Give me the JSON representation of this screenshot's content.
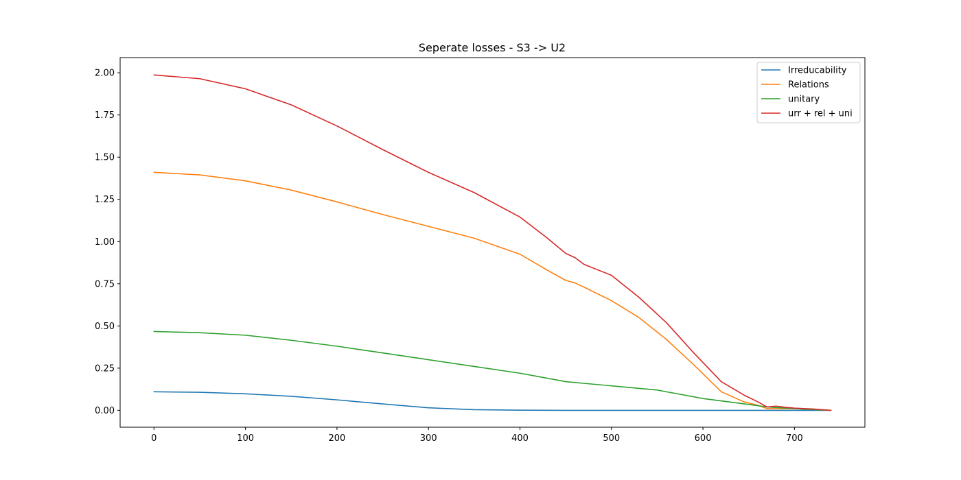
{
  "chart_data": {
    "type": "line",
    "title": "Seperate losses - S3 -> U2",
    "xlabel": "",
    "ylabel": "",
    "xlim": [
      -37,
      777
    ],
    "ylim": [
      -0.1,
      2.09
    ],
    "x_ticks": [
      0,
      100,
      200,
      300,
      400,
      500,
      600,
      700
    ],
    "y_ticks": [
      0.0,
      0.25,
      0.5,
      0.75,
      1.0,
      1.25,
      1.5,
      1.75,
      2.0
    ],
    "x_tick_labels": [
      "0",
      "100",
      "200",
      "300",
      "400",
      "500",
      "600",
      "700"
    ],
    "y_tick_labels": [
      "0.00",
      "0.25",
      "0.50",
      "0.75",
      "1.00",
      "1.25",
      "1.50",
      "1.75",
      "2.00"
    ],
    "grid": false,
    "legend_position": "top-right",
    "series": [
      {
        "name": "Irreducability",
        "color": "#1f77b4",
        "x": [
          0,
          50,
          100,
          150,
          200,
          250,
          300,
          350,
          400,
          450,
          500,
          550,
          600,
          650,
          700,
          740
        ],
        "y": [
          0.11,
          0.107,
          0.098,
          0.083,
          0.062,
          0.038,
          0.015,
          0.004,
          0.001,
          0.0,
          0.0,
          0.0,
          0.0,
          0.0,
          0.0,
          0.0
        ]
      },
      {
        "name": "Relations",
        "color": "#ff7f0e",
        "x": [
          0,
          50,
          100,
          150,
          200,
          250,
          300,
          350,
          400,
          430,
          450,
          460,
          470,
          500,
          530,
          560,
          590,
          620,
          645,
          660,
          670,
          700,
          740
        ],
        "y": [
          1.41,
          1.395,
          1.36,
          1.305,
          1.235,
          1.16,
          1.09,
          1.02,
          0.925,
          0.83,
          0.77,
          0.755,
          0.73,
          0.65,
          0.55,
          0.42,
          0.27,
          0.11,
          0.05,
          0.03,
          0.01,
          0.01,
          0.0
        ]
      },
      {
        "name": "unitary",
        "color": "#2ca02c",
        "x": [
          0,
          50,
          100,
          150,
          200,
          250,
          300,
          350,
          400,
          450,
          480,
          500,
          550,
          600,
          650,
          670,
          700,
          740
        ],
        "y": [
          0.467,
          0.46,
          0.445,
          0.415,
          0.38,
          0.34,
          0.3,
          0.26,
          0.22,
          0.17,
          0.155,
          0.145,
          0.12,
          0.07,
          0.035,
          0.02,
          0.01,
          0.0
        ]
      },
      {
        "name": "urr + rel + uni",
        "color": "#d62728",
        "x": [
          0,
          50,
          100,
          150,
          200,
          250,
          300,
          350,
          400,
          430,
          450,
          460,
          470,
          500,
          530,
          560,
          590,
          620,
          645,
          660,
          670,
          680,
          690,
          700,
          720,
          740
        ],
        "y": [
          1.987,
          1.965,
          1.905,
          1.81,
          1.685,
          1.545,
          1.41,
          1.29,
          1.145,
          1.02,
          0.93,
          0.905,
          0.865,
          0.8,
          0.67,
          0.52,
          0.34,
          0.17,
          0.09,
          0.05,
          0.02,
          0.025,
          0.018,
          0.013,
          0.008,
          0.0
        ]
      }
    ]
  }
}
